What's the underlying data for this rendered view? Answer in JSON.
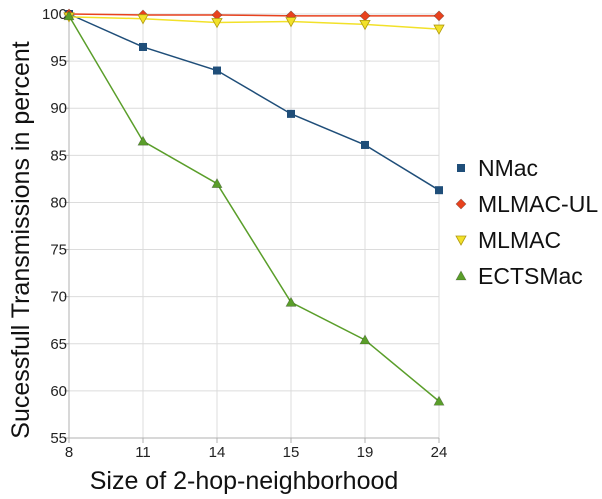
{
  "chart_data": {
    "type": "line",
    "title": "",
    "xlabel": "Size of 2-hop-neighborhood",
    "ylabel": "Sucessfull Transmissions in percent",
    "categories": [
      "8",
      "11",
      "14",
      "15",
      "19",
      "24"
    ],
    "yticks": [
      "55",
      "60",
      "65",
      "70",
      "75",
      "80",
      "85",
      "90",
      "95",
      "100"
    ],
    "ylim": [
      55,
      100
    ],
    "grid": true,
    "legend_position": "right",
    "series": [
      {
        "name": "NMac",
        "color": "#1f4e79",
        "marker": "square",
        "values": [
          100,
          96.5,
          94,
          89.4,
          86.1,
          81.3
        ]
      },
      {
        "name": "MLMAC-UL",
        "color": "#e8421e",
        "marker": "diamond",
        "values": [
          100,
          99.9,
          99.9,
          99.8,
          99.8,
          99.8
        ]
      },
      {
        "name": "MLMAC",
        "color": "#f2e129",
        "marker": "triangle-down",
        "values": [
          99.7,
          99.5,
          99.1,
          99.2,
          98.9,
          98.4
        ]
      },
      {
        "name": "ECTSMac",
        "color": "#5a9e2a",
        "marker": "triangle-up",
        "values": [
          99.8,
          86.5,
          82,
          69.4,
          65.4,
          58.9
        ]
      }
    ]
  }
}
